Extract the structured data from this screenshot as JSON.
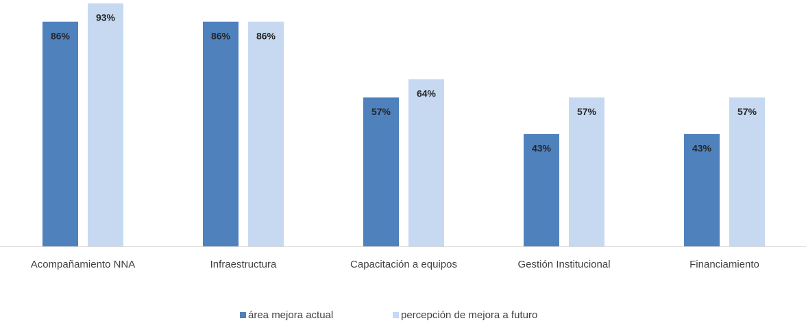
{
  "chart_data": {
    "type": "bar",
    "categories": [
      "Acompañamiento NNA",
      "Infraestructura",
      "Capacitación a equipos",
      "Gestión Institucional",
      "Financiamiento"
    ],
    "series": [
      {
        "name": "área mejora actual",
        "color": "#4f81bd",
        "values": [
          86,
          86,
          57,
          43,
          43
        ],
        "value_labels": [
          "86%",
          "86%",
          "57%",
          "43%",
          "43%"
        ]
      },
      {
        "name": "percepción de mejora a futuro",
        "color": "#c6d9f1",
        "values": [
          93,
          86,
          64,
          57,
          57
        ],
        "value_labels": [
          "93%",
          "86%",
          "64%",
          "57%",
          "57%"
        ]
      }
    ],
    "legend": "bottom"
  }
}
